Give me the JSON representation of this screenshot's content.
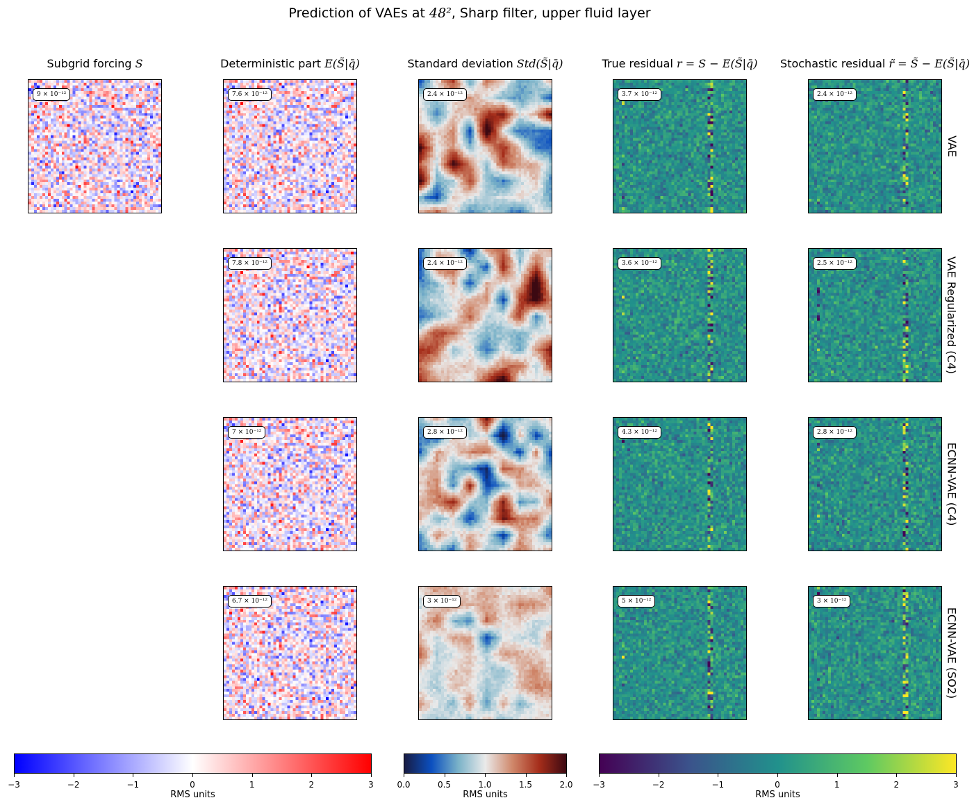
{
  "figure": {
    "title_prefix": "Prediction of VAEs at ",
    "title_math": "48²",
    "title_suffix": ", Sharp filter, upper fluid layer"
  },
  "columns": [
    {
      "text": "Subgrid forcing ",
      "math": "S"
    },
    {
      "text": "Deterministic part ",
      "math": "E(S̃|q̄)"
    },
    {
      "text": "Standard deviation ",
      "math": "Std(S̃|q̄)"
    },
    {
      "text": "True residual ",
      "math": "r = S − E(S̃|q̄)"
    },
    {
      "text": "Stochastic residual ",
      "math": "r̃ = S̃ − E(S̃|q̄)"
    }
  ],
  "rows": [
    "VAE",
    "VAE Regularized (C4)",
    "ECNN-VAE (C4)",
    "ECNN-VAE (SO2)"
  ],
  "panel_labels": [
    [
      "9 × 10⁻¹²",
      "7.6 × 10⁻¹²",
      "2.4 × 10⁻¹²",
      "3.7 × 10⁻¹²",
      "2.4 × 10⁻¹²"
    ],
    [
      null,
      "7.8 × 10⁻¹²",
      "2.4 × 10⁻¹²",
      "3.6 × 10⁻¹²",
      "2.5 × 10⁻¹²"
    ],
    [
      null,
      "7 × 10⁻¹²",
      "2.8 × 10⁻¹²",
      "4.3 × 10⁻¹²",
      "2.8 × 10⁻¹²"
    ],
    [
      null,
      "6.7 × 10⁻¹²",
      "3 × 10⁻¹²",
      "5 × 10⁻¹²",
      "3 × 10⁻¹²"
    ]
  ],
  "colorbars": [
    {
      "name": "bwr",
      "ticks": [
        "−3",
        "−2",
        "−1",
        "0",
        "1",
        "2",
        "3"
      ],
      "range": [
        -3,
        3
      ],
      "label": "RMS units",
      "colors": [
        "#0000ff",
        "#ffffff",
        "#ff0000"
      ]
    },
    {
      "name": "RdBu_r (diverging)",
      "ticks": [
        "0.0",
        "0.5",
        "1.0",
        "1.5",
        "2.0"
      ],
      "range": [
        0,
        2
      ],
      "label": "RMS units",
      "colors": [
        "#181c43",
        "#0b4fbf",
        "#7ab2c8",
        "#eaeaea",
        "#d0886b",
        "#a52d1a",
        "#3c0912"
      ]
    },
    {
      "name": "viridis",
      "ticks": [
        "−3",
        "−2",
        "−1",
        "0",
        "1",
        "2",
        "3"
      ],
      "range": [
        -3,
        3
      ],
      "label": "RMS units",
      "colors": [
        "#440154",
        "#3b528b",
        "#21918c",
        "#5ec962",
        "#fde725"
      ]
    }
  ],
  "chart_data": {
    "type": "heatmap",
    "grid_resolution": "48x48",
    "layout": "4 rows x 5 columns of image panels; column 1 only in first row",
    "colormaps": {
      "col1_col2": "bwr",
      "col3": "diverging blue-white-red",
      "col4_col5": "viridis"
    },
    "value_ranges": {
      "col1_col2": [
        -3,
        3
      ],
      "col3": [
        0,
        2
      ],
      "col4_col5": [
        -3,
        3
      ]
    },
    "units": "RMS units",
    "rms_values": {
      "VAE": {
        "S": "9e-12",
        "E": "7.6e-12",
        "Std": "2.4e-12",
        "r": "3.7e-12",
        "r_tilde": "2.4e-12"
      },
      "VAE Regularized (C4)": {
        "E": "7.8e-12",
        "Std": "2.4e-12",
        "r": "3.6e-12",
        "r_tilde": "2.5e-12"
      },
      "ECNN-VAE (C4)": {
        "E": "7e-12",
        "Std": "2.8e-12",
        "r": "4.3e-12",
        "r_tilde": "2.8e-12"
      },
      "ECNN-VAE (SO2)": {
        "E": "6.7e-12",
        "Std": "3e-12",
        "r": "5e-12",
        "r_tilde": "3e-12"
      }
    }
  }
}
